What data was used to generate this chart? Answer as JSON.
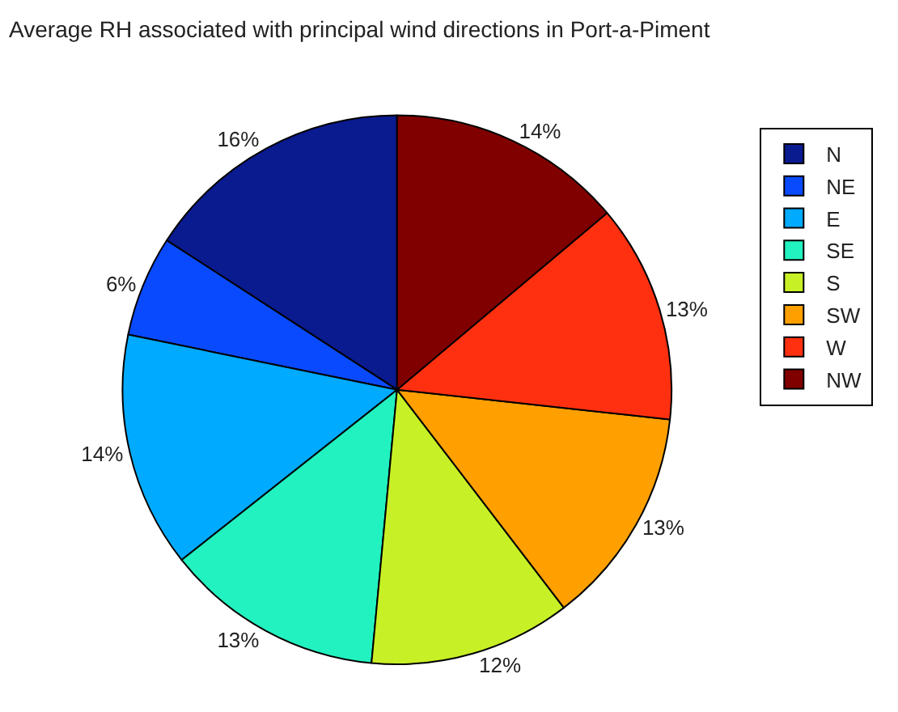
{
  "chart_data": {
    "type": "pie",
    "title": "Average RH associated with principal wind directions in Port-a-Piment",
    "categories": [
      "N",
      "NE",
      "E",
      "SE",
      "S",
      "SW",
      "W",
      "NW"
    ],
    "values": [
      16,
      6,
      14,
      13,
      12,
      13,
      13,
      14
    ],
    "value_labels": [
      "16%",
      "6%",
      "14%",
      "13%",
      "12%",
      "13%",
      "13%",
      "14%"
    ],
    "colors": [
      "#0a1a8f",
      "#0a4aff",
      "#00aaff",
      "#22f2c0",
      "#c8f026",
      "#ffa000",
      "#ff3010",
      "#800000"
    ],
    "legend": "top right"
  }
}
